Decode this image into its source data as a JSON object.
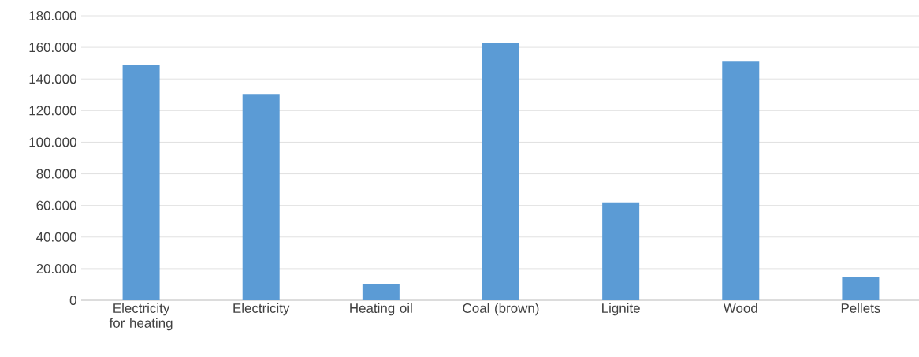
{
  "chart_data": {
    "type": "bar",
    "categories": [
      "Electricity for heating",
      "Electricity",
      "Heating oil",
      "Coal (brown)",
      "Lignite",
      "Wood",
      "Pellets"
    ],
    "values": [
      149000,
      130500,
      10000,
      163000,
      62000,
      151000,
      15000
    ],
    "color": "#5b9bd5",
    "ylim": [
      0,
      180000
    ],
    "yticks": [
      0,
      {
        "value": 20000,
        "label": "20.000"
      },
      {
        "value": 40000,
        "label": "40.000"
      },
      {
        "value": 60000,
        "label": "60.000"
      },
      {
        "value": 80000,
        "label": "80.000"
      },
      {
        "value": 100000,
        "label": "100.000"
      },
      {
        "value": 120000,
        "label": "120.000"
      },
      {
        "value": 140000,
        "label": "140.000"
      },
      {
        "value": 160000,
        "label": "160.000"
      },
      {
        "value": 180000,
        "label": "180.000"
      }
    ],
    "grid": "y"
  }
}
